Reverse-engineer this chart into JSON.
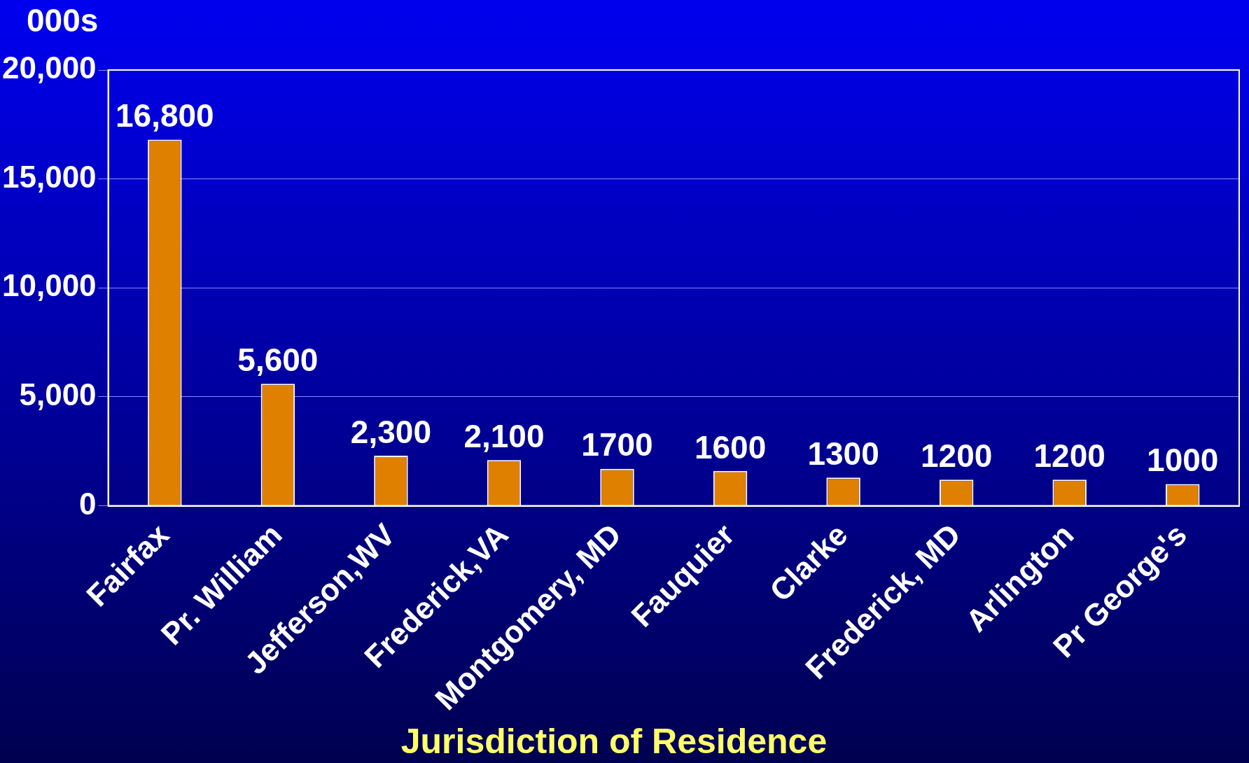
{
  "chart_data": {
    "type": "bar",
    "ylabel": "000s",
    "xlabel": "Jurisdiction of Residence",
    "categories": [
      "Fairfax",
      "Pr. William",
      "Jefferson,WV",
      "Frederick,VA",
      "Montgomery, MD",
      "Fauquier",
      "Clarke",
      "Frederick, MD",
      "Arlington",
      "Pr George's"
    ],
    "values": [
      16800,
      5600,
      2300,
      2100,
      1700,
      1600,
      1300,
      1200,
      1200,
      1000
    ],
    "value_labels": [
      "16,800",
      "5,600",
      "2,300",
      "2,100",
      "1700",
      "1600",
      "1300",
      "1200",
      "1200",
      "1000"
    ],
    "color": "#e08000",
    "ylim": [
      0,
      20000
    ],
    "yticks": [
      {
        "value": 0,
        "label": "0"
      },
      {
        "value": 5000,
        "label": "5,000"
      },
      {
        "value": 10000,
        "label": "10,000"
      },
      {
        "value": 15000,
        "label": "15,000"
      },
      {
        "value": 20000,
        "label": "20,000"
      }
    ],
    "grid": "y"
  }
}
